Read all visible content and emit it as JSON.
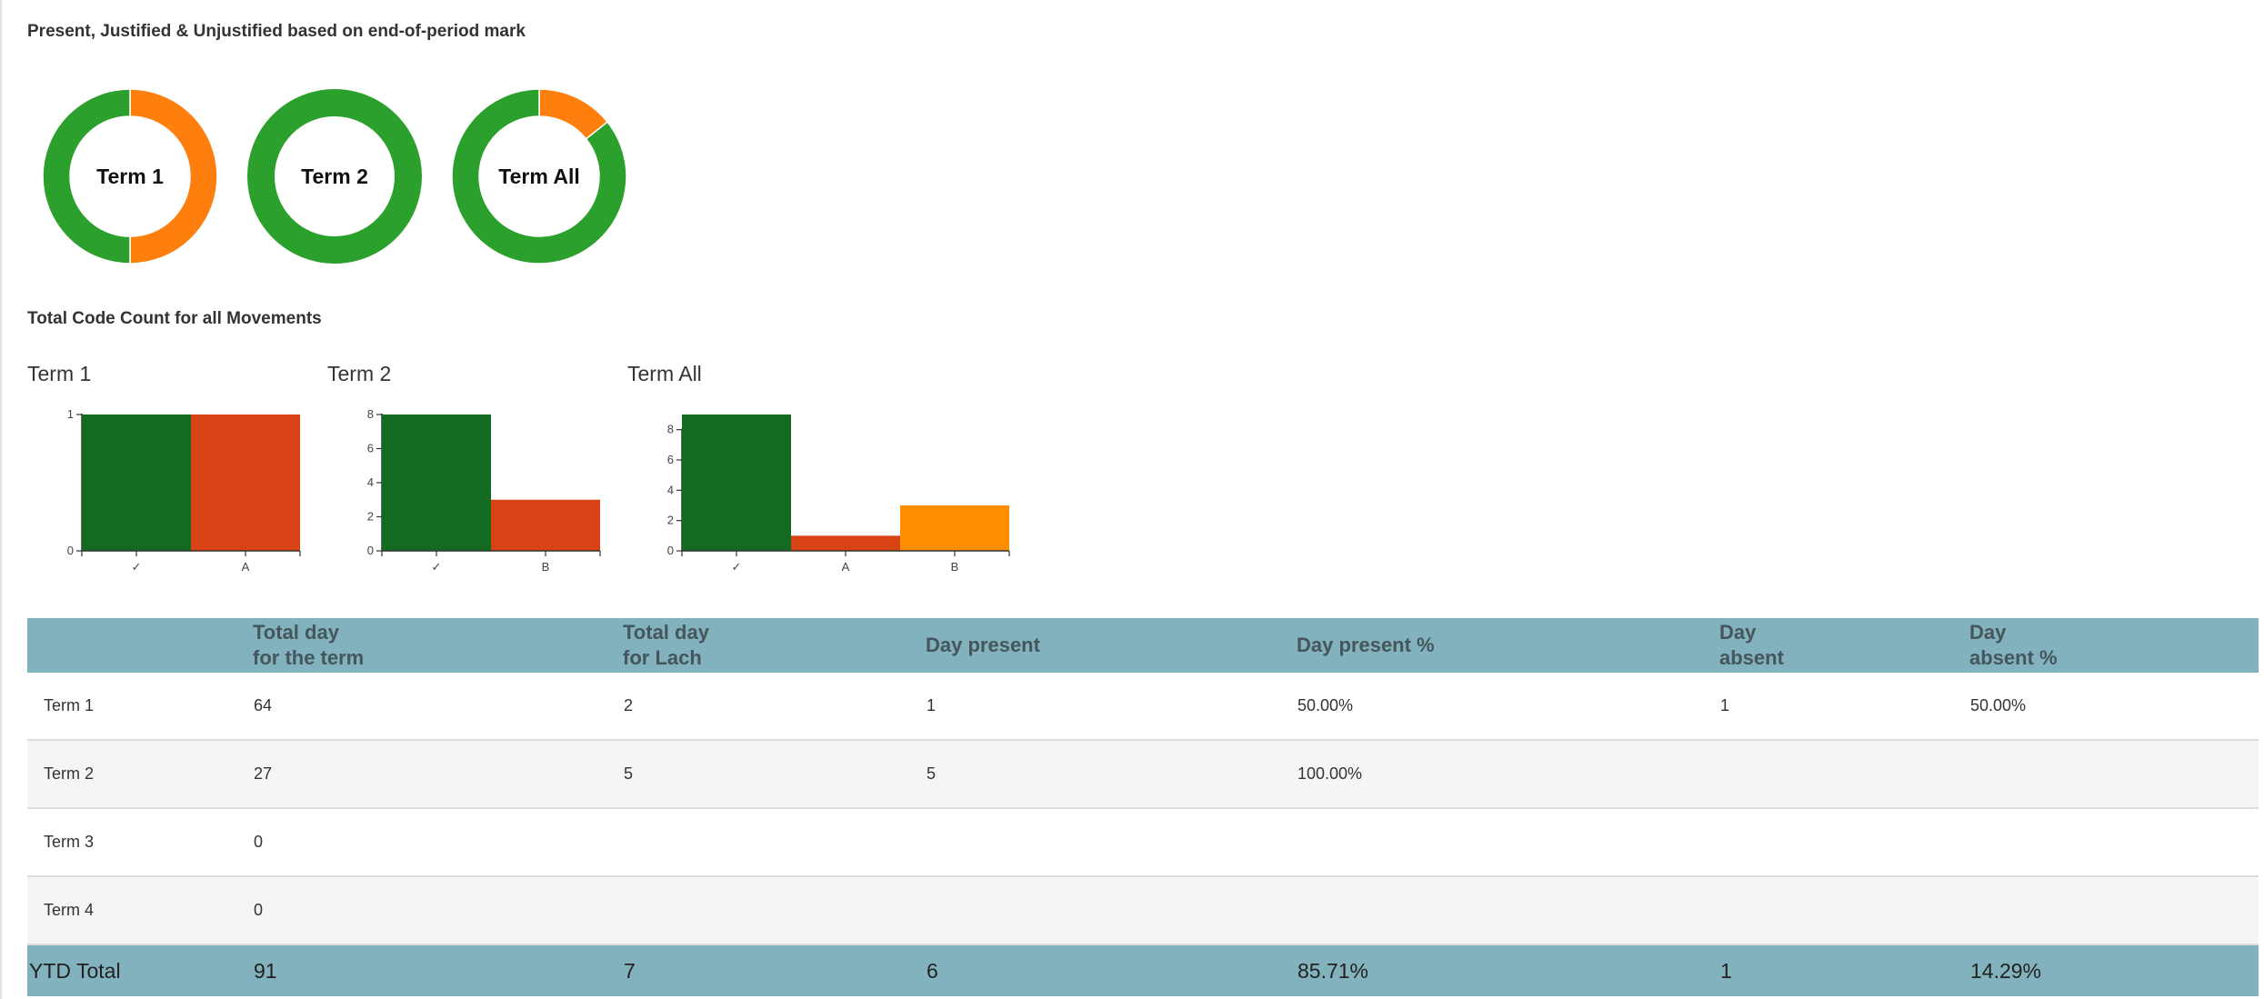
{
  "colors": {
    "donut_green": "#2ca02c",
    "donut_orange": "#ff7f0e",
    "bar_check": "#136b22",
    "bar_a": "#d84315",
    "bar_b": "#ff8f00",
    "table_header": "#81b2bd"
  },
  "section1": {
    "title": "Present, Justified & Unjustified based on end-of-period mark",
    "donuts": [
      {
        "label": "Term 1",
        "slices": [
          {
            "color": "donut_orange",
            "value": 1
          },
          {
            "color": "donut_green",
            "value": 1
          }
        ]
      },
      {
        "label": "Term 2",
        "slices": [
          {
            "color": "donut_green",
            "value": 1
          }
        ]
      },
      {
        "label": "Term All",
        "slices": [
          {
            "color": "donut_orange",
            "value": 1
          },
          {
            "color": "donut_green",
            "value": 6
          }
        ]
      }
    ]
  },
  "section2": {
    "title": "Total Code Count for all Movements"
  },
  "chart_data": [
    {
      "type": "bar",
      "title": "Term 1",
      "categories": [
        "✓",
        "A"
      ],
      "values": [
        1,
        1
      ],
      "bar_colors": [
        "bar_check",
        "bar_a"
      ],
      "ylim": [
        0,
        1
      ],
      "yticks": [
        0,
        1
      ]
    },
    {
      "type": "bar",
      "title": "Term 2",
      "categories": [
        "✓",
        "B"
      ],
      "values": [
        8,
        3
      ],
      "bar_colors": [
        "bar_check",
        "bar_a"
      ],
      "ylim": [
        0,
        8
      ],
      "yticks": [
        0,
        2,
        4,
        6,
        8
      ]
    },
    {
      "type": "bar",
      "title": "Term All",
      "categories": [
        "✓",
        "A",
        "B"
      ],
      "values": [
        9,
        1,
        3
      ],
      "bar_colors": [
        "bar_check",
        "bar_a",
        "bar_b"
      ],
      "ylim": [
        0,
        9
      ],
      "yticks": [
        0,
        2,
        4,
        6,
        8
      ]
    }
  ],
  "table": {
    "headers": [
      [
        "",
        ""
      ],
      [
        "Total day",
        "for the term"
      ],
      [
        "Total day",
        "for Lach"
      ],
      [
        "Day present",
        ""
      ],
      [
        "Day present %",
        ""
      ],
      [
        "Day",
        "absent"
      ],
      [
        "Day",
        "absent %"
      ]
    ],
    "rows": [
      [
        "Term 1",
        "64",
        "2",
        "1",
        "50.00%",
        "1",
        "50.00%"
      ],
      [
        "Term 2",
        "27",
        "5",
        "5",
        "100.00%",
        "",
        ""
      ],
      [
        "Term 3",
        "0",
        "",
        "",
        "",
        "",
        ""
      ],
      [
        "Term 4",
        "0",
        "",
        "",
        "",
        "",
        ""
      ]
    ],
    "total": [
      "YTD Total",
      "91",
      "7",
      "6",
      "85.71%",
      "1",
      "14.29%"
    ]
  }
}
